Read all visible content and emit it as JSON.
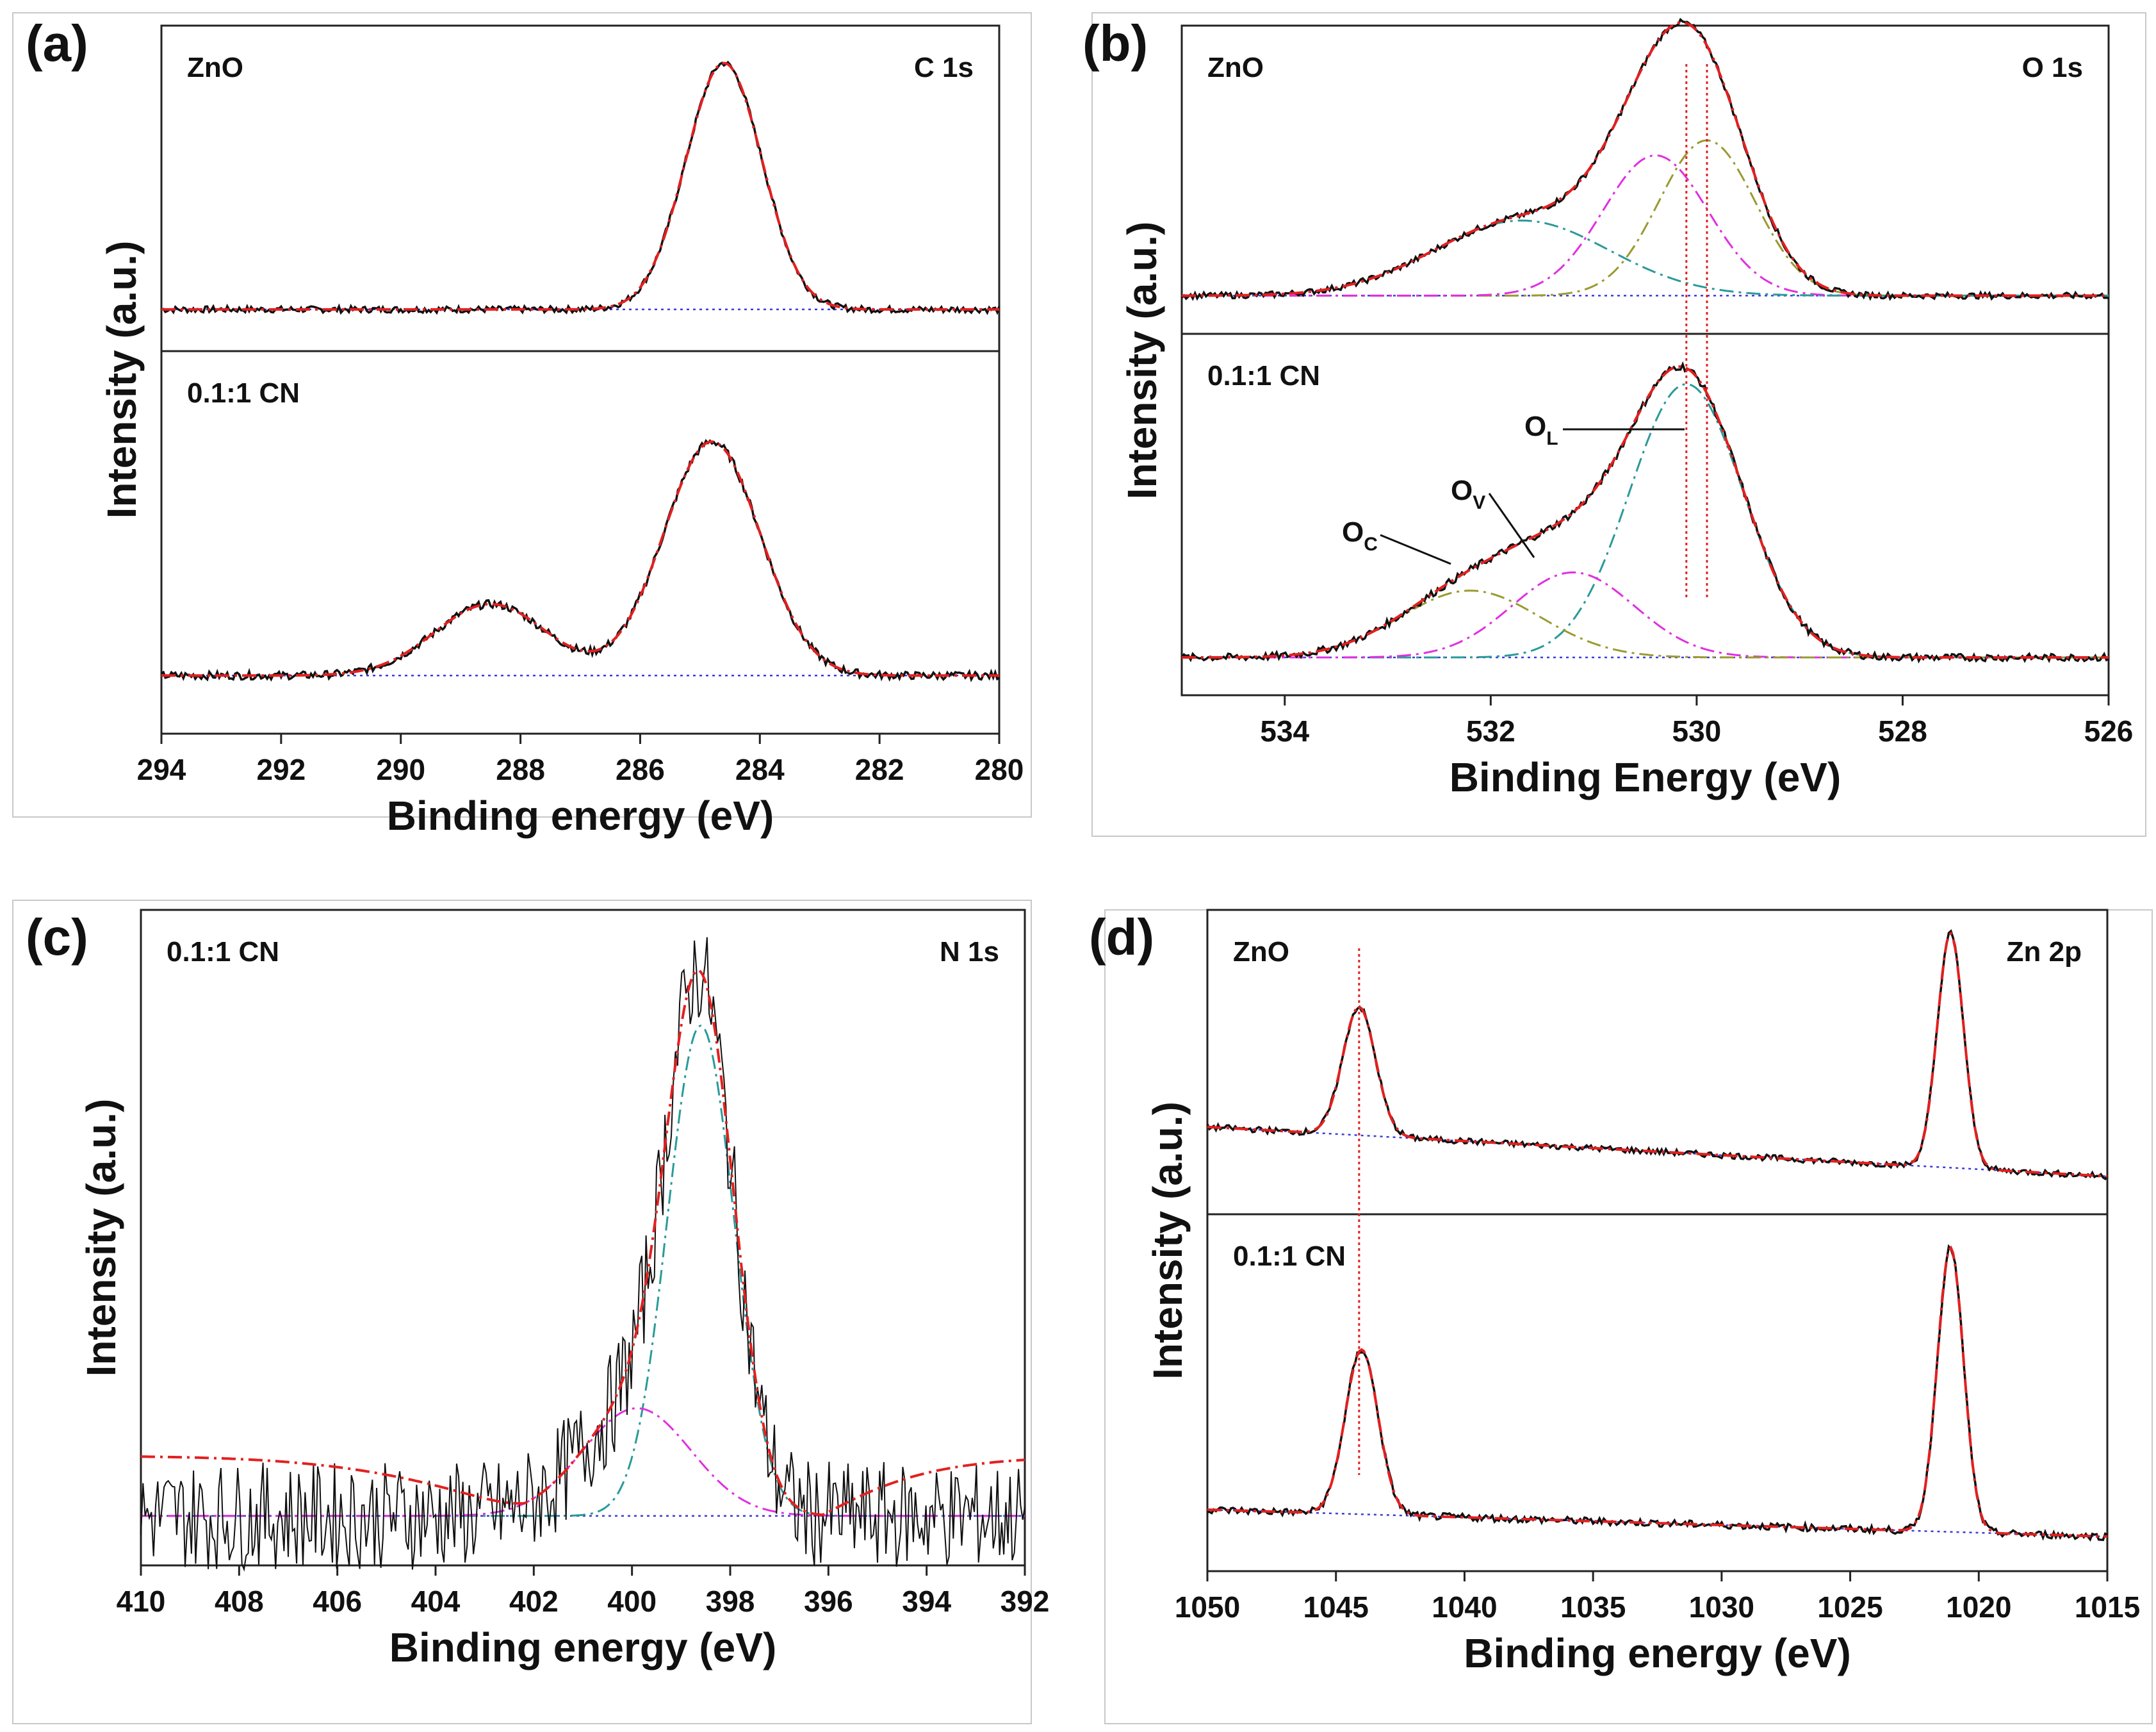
{
  "figure": {
    "description_labels": [
      "(a)",
      "(b)",
      "(c)",
      "(d)"
    ]
  },
  "chart_data": [
    {
      "panel": "(a)",
      "type": "line",
      "title": "C 1s",
      "xlabel": "Binding energy (eV)",
      "ylabel": "Intensity (a.u.)",
      "xlim": [
        294,
        280
      ],
      "xticks": [
        294,
        292,
        290,
        288,
        286,
        284,
        282,
        280
      ],
      "subplots": [
        {
          "sample": "ZnO",
          "baseline": 0.06,
          "peaks": [
            {
              "center": 284.6,
              "height": 0.92,
              "fwhm": 1.5,
              "color": "#e32020",
              "style": "dashdot"
            }
          ],
          "background": {
            "type": "hump",
            "center": 285.8,
            "height": 0.03,
            "fwhm": 3.0,
            "color": "#3b3bd6",
            "style": "dotted"
          }
        },
        {
          "sample": "0.1:1 CN",
          "baseline": 0.1,
          "peaks": [
            {
              "center": 284.8,
              "height": 0.72,
              "fwhm": 1.9,
              "color": "#e32020",
              "style": "dashdot"
            },
            {
              "center": 288.5,
              "height": 0.22,
              "fwhm": 2.2,
              "color": "#e32020",
              "style": "dashdot"
            }
          ],
          "background": {
            "type": "line",
            "color": "#3b3bd6",
            "style": "dotted"
          }
        }
      ]
    },
    {
      "panel": "(b)",
      "type": "line",
      "title": "O 1s",
      "xlabel": "Binding Energy (eV)",
      "ylabel": "Intensity (a.u.)",
      "xlim": [
        535,
        526
      ],
      "xticks": [
        534,
        532,
        530,
        528,
        526
      ],
      "reference_lines": [
        529.9,
        530.1
      ],
      "annotations": [
        {
          "label": "O",
          "sub": "L",
          "x": 530.1
        },
        {
          "label": "O",
          "sub": "V",
          "x": 531.2
        },
        {
          "label": "O",
          "sub": "C",
          "x": 532.2
        }
      ],
      "subplots": [
        {
          "sample": "ZnO",
          "baseline": 0.05,
          "components": [
            {
              "name": "O_L",
              "center": 529.9,
              "height": 0.62,
              "fwhm": 1.1,
              "color": "#9a9a30"
            },
            {
              "name": "O_V",
              "center": 530.4,
              "height": 0.56,
              "fwhm": 1.2,
              "color": "#e030e0"
            },
            {
              "name": "O_C",
              "center": 531.7,
              "height": 0.3,
              "fwhm": 2.0,
              "color": "#2a9a9a"
            }
          ]
        },
        {
          "sample": "0.1:1 CN",
          "baseline": 0.04,
          "components": [
            {
              "name": "O_L",
              "center": 530.1,
              "height": 0.9,
              "fwhm": 1.3,
              "color": "#2a9a9a"
            },
            {
              "name": "O_V",
              "center": 531.2,
              "height": 0.28,
              "fwhm": 1.4,
              "color": "#e030e0"
            },
            {
              "name": "O_C",
              "center": 532.2,
              "height": 0.22,
              "fwhm": 1.6,
              "color": "#9a9a30"
            }
          ]
        }
      ]
    },
    {
      "panel": "(c)",
      "type": "line",
      "title": "N 1s",
      "sample": "0.1:1 CN",
      "xlabel": "Binding energy (eV)",
      "ylabel": "Intensity (a.u.)",
      "xlim": [
        410,
        392
      ],
      "xticks": [
        410,
        408,
        406,
        404,
        402,
        400,
        398,
        396,
        394,
        392
      ],
      "baseline": 0.04,
      "components": [
        {
          "center": 398.6,
          "height": 0.82,
          "fwhm": 1.6,
          "color": "#2a9a9a"
        },
        {
          "center": 399.9,
          "height": 0.18,
          "fwhm": 2.6,
          "color": "#e030e0"
        }
      ],
      "envelope_offset": 0.1
    },
    {
      "panel": "(d)",
      "type": "line",
      "title": "Zn 2p",
      "xlabel": "Binding energy (eV)",
      "ylabel": "Intensity (a.u.)",
      "xlim": [
        1050,
        1015
      ],
      "xticks": [
        1050,
        1045,
        1040,
        1035,
        1030,
        1025,
        1020,
        1015
      ],
      "reference_lines": [
        1044.1
      ],
      "subplots": [
        {
          "sample": "ZnO",
          "baseline_left": 0.25,
          "baseline_right": 0.05,
          "peaks": [
            {
              "center": 1044.1,
              "height": 0.52,
              "fwhm": 1.5
            },
            {
              "center": 1021.1,
              "height": 0.95,
              "fwhm": 1.2
            }
          ]
        },
        {
          "sample": "0.1:1 CN",
          "baseline_left": 0.12,
          "baseline_right": 0.03,
          "peaks": [
            {
              "center": 1044.0,
              "height": 0.55,
              "fwhm": 1.5
            },
            {
              "center": 1021.1,
              "height": 0.95,
              "fwhm": 1.2
            }
          ]
        }
      ]
    }
  ]
}
